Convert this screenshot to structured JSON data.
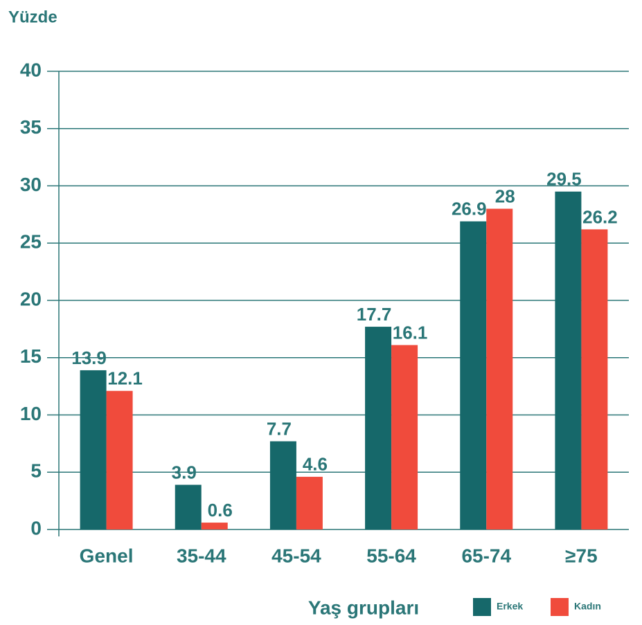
{
  "chart_data": {
    "type": "bar",
    "y_label": "Yüzde",
    "x_label": "Yaş grupları",
    "categories": [
      "Genel",
      "35-44",
      "45-54",
      "55-64",
      "65-74",
      "≥75"
    ],
    "series": [
      {
        "name": "Erkek",
        "color": "#16686a",
        "values": [
          13.9,
          3.9,
          7.7,
          17.7,
          26.9,
          29.5
        ]
      },
      {
        "name": "Kadın",
        "color": "#f04b3c",
        "values": [
          12.1,
          0.6,
          4.6,
          16.1,
          28,
          26.2
        ]
      }
    ],
    "ylim": [
      0,
      40
    ],
    "yticks": [
      0,
      5,
      10,
      15,
      20,
      25,
      30,
      35,
      40
    ],
    "grid": true
  }
}
